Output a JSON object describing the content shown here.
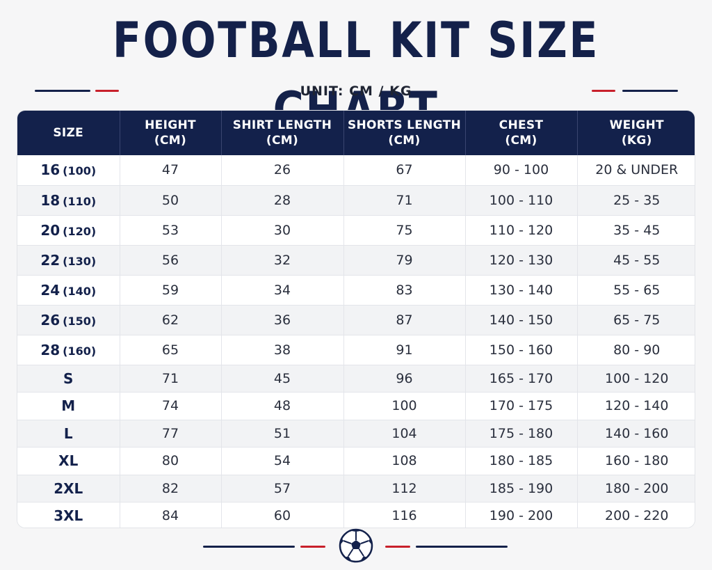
{
  "title": "FOOTBALL KIT SIZE CHART",
  "unit_label": "UNIT: CM / KG",
  "colors": {
    "navy": "#13214b",
    "red": "#c8202b",
    "background": "#f6f6f7"
  },
  "icons": {
    "footer": "soccer-ball-icon"
  },
  "table": {
    "headers": [
      {
        "line1": "SIZE",
        "line2": ""
      },
      {
        "line1": "HEIGHT",
        "line2": "(CM)"
      },
      {
        "line1": "SHIRT LENGTH",
        "line2": "(CM)"
      },
      {
        "line1": "SHORTS LENGTH",
        "line2": "(CM)"
      },
      {
        "line1": "CHEST",
        "line2": "(CM)"
      },
      {
        "line1": "WEIGHT",
        "line2": "(KG)"
      }
    ],
    "rows": [
      {
        "size": "16",
        "size_sub": "(100)",
        "height": "47",
        "shirt": "26",
        "shorts": "67",
        "chest": "90 - 100",
        "weight": "20 & UNDER"
      },
      {
        "size": "18",
        "size_sub": "(110)",
        "height": "50",
        "shirt": "28",
        "shorts": "71",
        "chest": "100 - 110",
        "weight": "25 - 35"
      },
      {
        "size": "20",
        "size_sub": "(120)",
        "height": "53",
        "shirt": "30",
        "shorts": "75",
        "chest": "110 - 120",
        "weight": "35 - 45"
      },
      {
        "size": "22",
        "size_sub": "(130)",
        "height": "56",
        "shirt": "32",
        "shorts": "79",
        "chest": "120 - 130",
        "weight": "45 - 55"
      },
      {
        "size": "24",
        "size_sub": "(140)",
        "height": "59",
        "shirt": "34",
        "shorts": "83",
        "chest": "130 - 140",
        "weight": "55 - 65"
      },
      {
        "size": "26",
        "size_sub": "(150)",
        "height": "62",
        "shirt": "36",
        "shorts": "87",
        "chest": "140 - 150",
        "weight": "65 - 75"
      },
      {
        "size": "28",
        "size_sub": "(160)",
        "height": "65",
        "shirt": "38",
        "shorts": "91",
        "chest": "150 - 160",
        "weight": "80 - 90"
      },
      {
        "size": "S",
        "size_sub": "",
        "height": "71",
        "shirt": "45",
        "shorts": "96",
        "chest": "165 - 170",
        "weight": "100 - 120"
      },
      {
        "size": "M",
        "size_sub": "",
        "height": "74",
        "shirt": "48",
        "shorts": "100",
        "chest": "170 - 175",
        "weight": "120 - 140"
      },
      {
        "size": "L",
        "size_sub": "",
        "height": "77",
        "shirt": "51",
        "shorts": "104",
        "chest": "175 - 180",
        "weight": "140 - 160"
      },
      {
        "size": "XL",
        "size_sub": "",
        "height": "80",
        "shirt": "54",
        "shorts": "108",
        "chest": "180 - 185",
        "weight": "160 - 180"
      },
      {
        "size": "2XL",
        "size_sub": "",
        "height": "82",
        "shirt": "57",
        "shorts": "112",
        "chest": "185 - 190",
        "weight": "180 - 200"
      },
      {
        "size": "3XL",
        "size_sub": "",
        "height": "84",
        "shirt": "60",
        "shorts": "116",
        "chest": "190 - 200",
        "weight": "200 - 220"
      }
    ]
  }
}
